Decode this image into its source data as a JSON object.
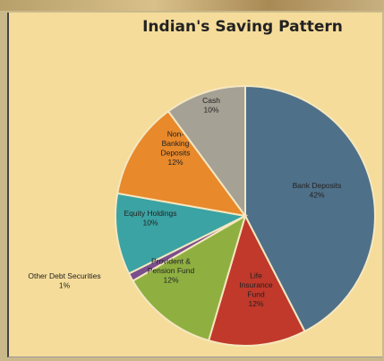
{
  "chart_data": {
    "type": "pie",
    "title": "Indian's Saving Pattern",
    "slices": [
      {
        "label": "Bank Deposits",
        "value": 42,
        "value_label": "42%",
        "color": "#4f7089"
      },
      {
        "label": "Life Insurance Fund",
        "value": 12,
        "value_label": "12%",
        "color": "#c0392b"
      },
      {
        "label": "Provident & Pension Fund",
        "value": 12,
        "value_label": "12%",
        "color": "#8fb041"
      },
      {
        "label": "Other Debt Securities",
        "value": 1,
        "value_label": "1%",
        "color": "#7a4f8c"
      },
      {
        "label": "Equity Holdings",
        "value": 10,
        "value_label": "10%",
        "color": "#3ba3a3"
      },
      {
        "label": "Non-Banking Deposits",
        "value": 12,
        "value_label": "12%",
        "color": "#e8892b"
      },
      {
        "label": "Cash",
        "value": 10,
        "value_label": "10%",
        "color": "#a6a195"
      }
    ],
    "start_angle": "12 o'clock",
    "direction": "clockwise",
    "legend": "none"
  }
}
